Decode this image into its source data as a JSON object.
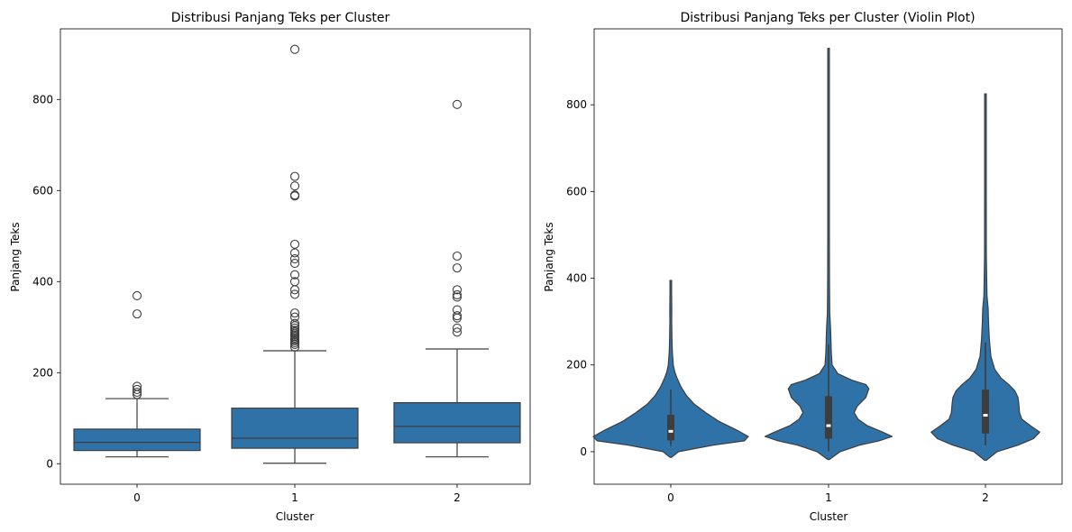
{
  "chart_data": [
    {
      "type": "boxplot",
      "title": "Distribusi Panjang Teks per Cluster",
      "xlabel": "Cluster",
      "ylabel": "Panjang Teks",
      "categories": [
        "0",
        "1",
        "2"
      ],
      "ylim": [
        -45,
        955
      ],
      "yticks": [
        0,
        200,
        400,
        600,
        800
      ],
      "grid": false,
      "color": "#2f72a8",
      "boxes": [
        {
          "category": "0",
          "q1": 29,
          "median": 47,
          "q3": 76,
          "whisker_low": 15,
          "whisker_high": 143,
          "outliers": [
            152,
            157,
            163,
            170,
            329,
            369
          ]
        },
        {
          "category": "1",
          "q1": 34,
          "median": 56,
          "q3": 122,
          "whisker_low": 1,
          "whisker_high": 248,
          "outliers": [
            256,
            262,
            266,
            270,
            273,
            276,
            279,
            282,
            285,
            289,
            293,
            298,
            303,
            308,
            322,
            331,
            372,
            382,
            400,
            415,
            440,
            450,
            463,
            482,
            588,
            590,
            610,
            631,
            910
          ]
        },
        {
          "category": "2",
          "q1": 46,
          "median": 82,
          "q3": 134,
          "whisker_low": 15,
          "whisker_high": 252,
          "outliers": [
            289,
            298,
            320,
            325,
            338,
            366,
            371,
            382,
            430,
            456,
            789
          ]
        }
      ]
    },
    {
      "type": "violin",
      "title": "Distribusi Panjang Teks per Cluster (Violin Plot)",
      "xlabel": "Cluster",
      "ylabel": "Panjang Teks",
      "categories": [
        "0",
        "1",
        "2"
      ],
      "ylim": [
        -75,
        975
      ],
      "yticks": [
        0,
        200,
        400,
        600,
        800
      ],
      "grid": false,
      "color": "#2f72a8",
      "violins": [
        {
          "category": "0",
          "min": -13,
          "max": 395,
          "q1": 26,
          "median": 47,
          "q3": 85,
          "whisker_low": 13,
          "whisker_high": 143,
          "profile": [
            [
              -13,
              0.0
            ],
            [
              0,
              0.1
            ],
            [
              15,
              0.55
            ],
            [
              25,
              0.95
            ],
            [
              35,
              1.0
            ],
            [
              50,
              0.85
            ],
            [
              70,
              0.62
            ],
            [
              90,
              0.45
            ],
            [
              110,
              0.3
            ],
            [
              130,
              0.2
            ],
            [
              150,
              0.13
            ],
            [
              170,
              0.08
            ],
            [
              185,
              0.05
            ],
            [
              200,
              0.032
            ],
            [
              230,
              0.02
            ],
            [
              260,
              0.015
            ],
            [
              300,
              0.012
            ],
            [
              330,
              0.013
            ],
            [
              360,
              0.01
            ],
            [
              395,
              0.0
            ]
          ]
        },
        {
          "category": "1",
          "min": -18,
          "max": 930,
          "q1": 30,
          "median": 60,
          "q3": 128,
          "whisker_low": 1,
          "whisker_high": 248,
          "profile": [
            [
              -18,
              0.0
            ],
            [
              0,
              0.15
            ],
            [
              15,
              0.4
            ],
            [
              25,
              0.65
            ],
            [
              35,
              0.82
            ],
            [
              45,
              0.7
            ],
            [
              60,
              0.5
            ],
            [
              75,
              0.38
            ],
            [
              90,
              0.33
            ],
            [
              105,
              0.37
            ],
            [
              125,
              0.48
            ],
            [
              145,
              0.52
            ],
            [
              155,
              0.48
            ],
            [
              165,
              0.3
            ],
            [
              180,
              0.12
            ],
            [
              200,
              0.045
            ],
            [
              230,
              0.035
            ],
            [
              260,
              0.03
            ],
            [
              290,
              0.025
            ],
            [
              320,
              0.015
            ],
            [
              400,
              0.012
            ],
            [
              500,
              0.011
            ],
            [
              600,
              0.01
            ],
            [
              700,
              0.009
            ],
            [
              800,
              0.009
            ],
            [
              900,
              0.008
            ],
            [
              930,
              0.0
            ]
          ]
        },
        {
          "category": "2",
          "min": -20,
          "max": 825,
          "q1": 42,
          "median": 84,
          "q3": 143,
          "whisker_low": 15,
          "whisker_high": 252,
          "profile": [
            [
              -20,
              0.0
            ],
            [
              0,
              0.15
            ],
            [
              15,
              0.42
            ],
            [
              30,
              0.62
            ],
            [
              45,
              0.7
            ],
            [
              60,
              0.58
            ],
            [
              75,
              0.47
            ],
            [
              90,
              0.44
            ],
            [
              110,
              0.43
            ],
            [
              125,
              0.42
            ],
            [
              140,
              0.38
            ],
            [
              155,
              0.3
            ],
            [
              170,
              0.2
            ],
            [
              190,
              0.12
            ],
            [
              220,
              0.07
            ],
            [
              260,
              0.05
            ],
            [
              300,
              0.04
            ],
            [
              330,
              0.035
            ],
            [
              360,
              0.02
            ],
            [
              450,
              0.012
            ],
            [
              600,
              0.01
            ],
            [
              750,
              0.009
            ],
            [
              825,
              0.0
            ]
          ]
        }
      ]
    }
  ]
}
